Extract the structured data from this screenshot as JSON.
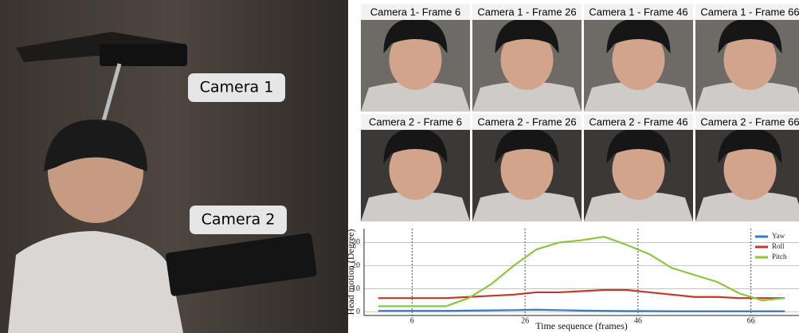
{
  "scene_labels": [
    "Camera 1",
    "Camera 2"
  ],
  "frame_labels": [
    [
      "Camera 1- Frame 6",
      "Camera 1 - Frame 26",
      "Camera 1 - Frame 46",
      "Camera 1 - Frame 66"
    ],
    [
      "Camera 2 - Frame 6",
      "Camera 2 - Frame 26",
      "Camera 2 - Frame 46",
      "Camera 2 - Frame 66"
    ]
  ],
  "chart_data": {
    "type": "line",
    "x_label": "Time sequence (frames)",
    "y_label": "Head motion (Degree)",
    "x": [
      0,
      4,
      8,
      12,
      16,
      20,
      24,
      28,
      32,
      36,
      40,
      44,
      48,
      52,
      56,
      60,
      64,
      68,
      72
    ],
    "series": [
      {
        "name": "Yaw",
        "color": "#3a78c0",
        "values": [
          0.5,
          0.5,
          0.5,
          0.5,
          0.6,
          0.7,
          0.8,
          1,
          0.8,
          0.6,
          0.5,
          0.4,
          0.4,
          0.3,
          0.3,
          0.3,
          0.3,
          0.3,
          0.3
        ]
      },
      {
        "name": "Roll",
        "color": "#c0392b",
        "values": [
          6,
          6,
          6,
          6,
          6.5,
          7,
          7.5,
          8.5,
          8.5,
          9,
          9.5,
          9.5,
          8.5,
          7.5,
          6.5,
          6.5,
          6,
          6,
          6
        ]
      },
      {
        "name": "Pitch",
        "color": "#8cc63f",
        "values": [
          2.5,
          2.5,
          2.5,
          2.5,
          6,
          12,
          20,
          27,
          30,
          31,
          32.5,
          29,
          25,
          19,
          16,
          13,
          8,
          5,
          6
        ]
      }
    ],
    "xlim": [
      -2.5,
      74.5
    ],
    "xticks": [
      6,
      26,
      46,
      66
    ],
    "ylim": [
      -1.5,
      36
    ],
    "yticks": [
      0,
      10,
      20,
      30
    ],
    "grid": true,
    "legend": "top-right"
  }
}
